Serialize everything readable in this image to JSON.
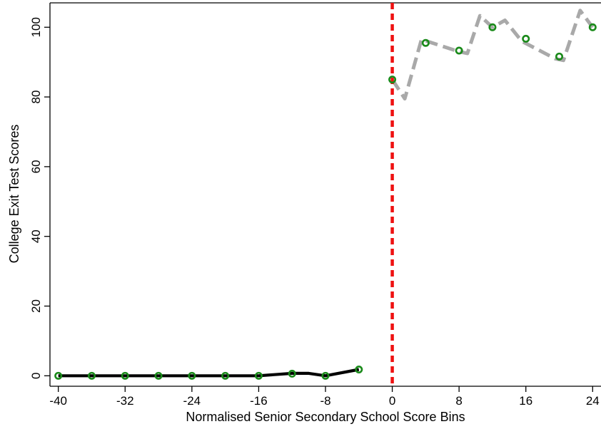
{
  "chart_data": {
    "type": "line",
    "title": "",
    "xlabel": "Normalised Senior Secondary School Score Bins",
    "ylabel": "College Exit Test Scores",
    "xlim": [
      -41,
      25
    ],
    "ylim": [
      -3,
      107
    ],
    "x_ticks": [
      -40,
      -32,
      -24,
      -16,
      -8,
      0,
      8,
      16,
      24
    ],
    "x_tick_labels": [
      "-40",
      "-32",
      "-24",
      "-16",
      "-8",
      "0",
      "8",
      "16",
      "24"
    ],
    "y_ticks": [
      0,
      20,
      40,
      60,
      80,
      100
    ],
    "y_tick_labels": [
      "0",
      "20",
      "40",
      "60",
      "80",
      "100"
    ],
    "grid": false,
    "cutoff": {
      "x": 0,
      "color": "#ee1111",
      "style": "dashed"
    },
    "series": [
      {
        "style": "solid-line",
        "color": "#000000",
        "x": [
          -40,
          -36,
          -32,
          -28,
          -24,
          -20,
          -16,
          -12,
          -10,
          -8,
          -4
        ],
        "y": [
          0,
          0,
          0,
          0,
          0,
          0,
          0,
          0.7,
          0.7,
          0,
          1.8
        ]
      },
      {
        "style": "dashed-line",
        "color": "#a9a9a9",
        "x": [
          0,
          1.5,
          3.5,
          8,
          9,
          10.5,
          12,
          13.5,
          15.5,
          19.5,
          20.5,
          22.5,
          24
        ],
        "y": [
          85,
          79.5,
          96.5,
          93,
          92.5,
          103.3,
          100,
          102,
          96,
          91,
          90.5,
          104.8,
          100
        ]
      },
      {
        "style": "hollow-markers",
        "color": "#1a8a1a",
        "x": [
          -40,
          -36,
          -32,
          -28,
          -24,
          -20,
          -16,
          -12,
          -8,
          -4,
          0,
          4,
          8,
          12,
          16,
          20,
          24
        ],
        "y": [
          0,
          0,
          0,
          0,
          0,
          0,
          0,
          0.6,
          0,
          1.8,
          85,
          95.5,
          93.3,
          100,
          96.7,
          91.6,
          100
        ]
      }
    ]
  }
}
